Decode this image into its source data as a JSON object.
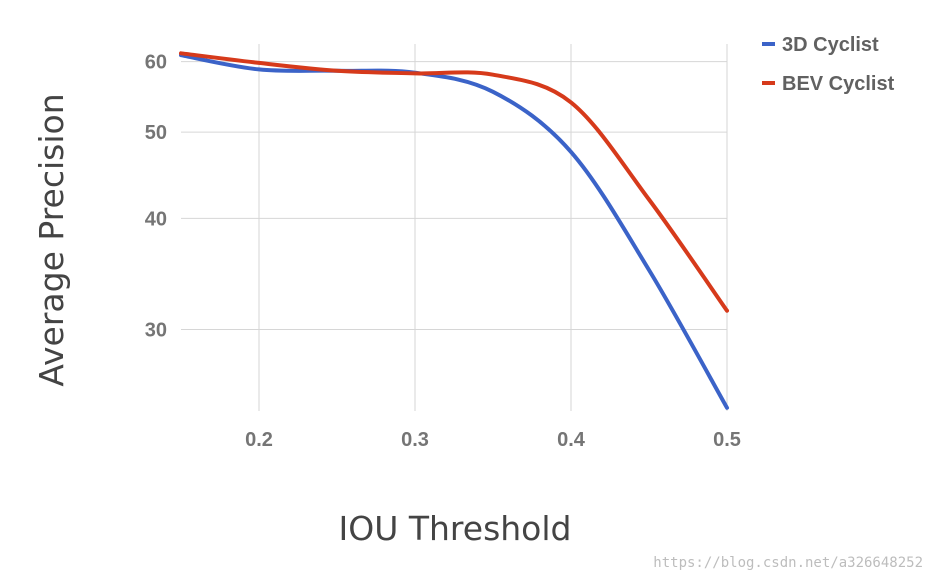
{
  "chart_data": {
    "type": "line",
    "xlabel": "IOU Threshold",
    "ylabel": "Average Precision",
    "xlim": [
      0.15,
      0.5
    ],
    "ylim": [
      24.3,
      62.8
    ],
    "y_scale": "log",
    "x_ticks": [
      "0.2",
      "0.3",
      "0.4",
      "0.5"
    ],
    "y_ticks": [
      "30",
      "40",
      "50",
      "60"
    ],
    "grid": true,
    "legend_position": "top-right",
    "series": [
      {
        "name": "3D Cyclist",
        "color": "#3b63c8",
        "x": [
          0.15,
          0.2,
          0.25,
          0.3,
          0.35,
          0.4,
          0.45,
          0.5
        ],
        "y": [
          61.0,
          58.8,
          58.6,
          58.3,
          55.5,
          47.5,
          35.0,
          24.5
        ]
      },
      {
        "name": "BEV Cyclist",
        "color": "#d63a1b",
        "x": [
          0.15,
          0.2,
          0.25,
          0.3,
          0.35,
          0.4,
          0.45,
          0.5
        ],
        "y": [
          61.3,
          59.8,
          58.6,
          58.2,
          58.0,
          54.0,
          42.0,
          31.5
        ]
      }
    ]
  },
  "watermark": "https://blog.csdn.net/a326648252"
}
